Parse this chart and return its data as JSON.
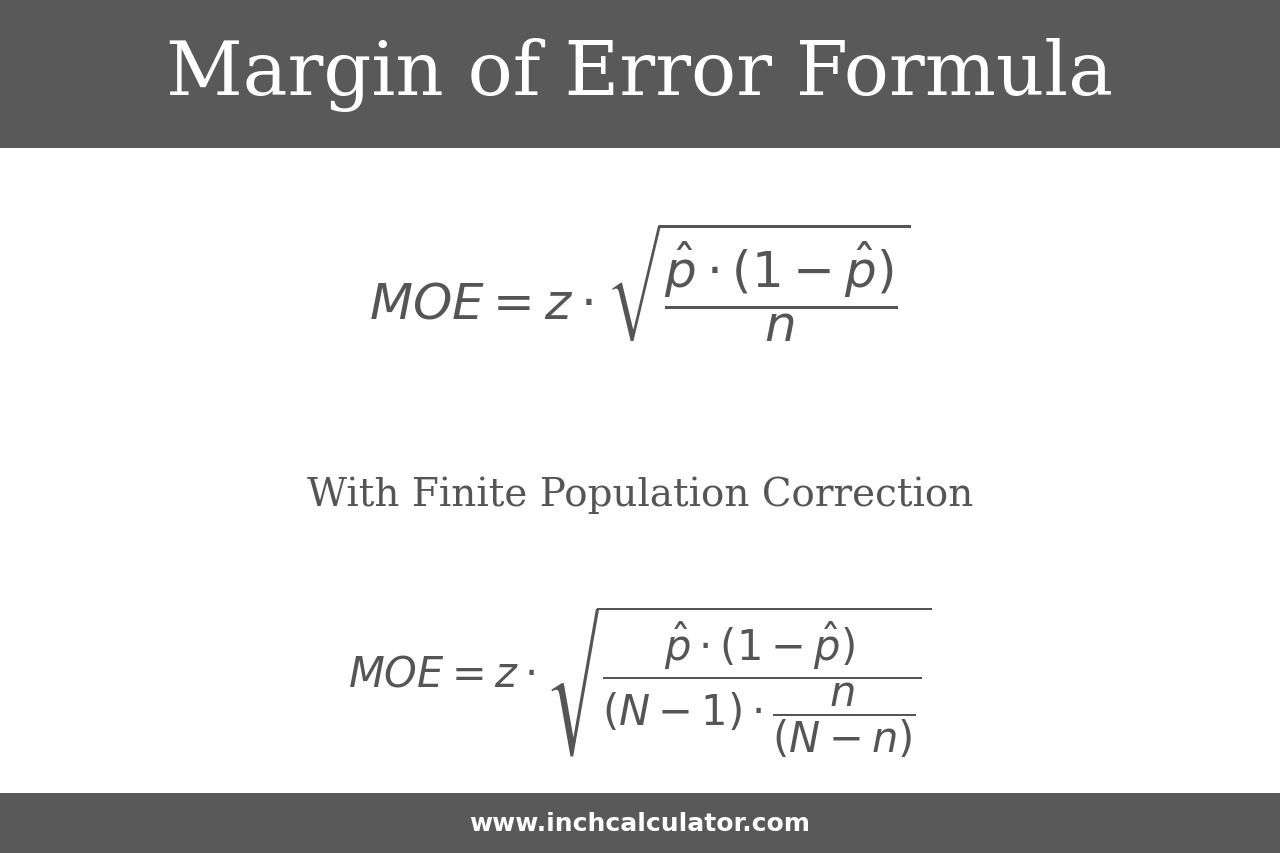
{
  "title": "Margin of Error Formula",
  "title_bg_color": "#595959",
  "title_text_color": "#ffffff",
  "body_bg_color": "#ffffff",
  "footer_bg_color": "#595959",
  "footer_text": "www.inchcalculator.com",
  "footer_text_color": "#ffffff",
  "formula1": "MOE = z \\cdot \\sqrt{\\dfrac{\\hat{p} \\cdot (1 - \\hat{p})}{n}}",
  "subtitle": "With Finite Population Correction",
  "formula2": "MOE = z \\cdot \\sqrt{\\dfrac{\\hat{p} \\cdot (1 - \\hat{p})}{(N-1) \\cdot \\dfrac{n}{(N-n)}}}",
  "formula_color": "#555555",
  "subtitle_color": "#555555",
  "title_fontsize": 54,
  "formula1_fontsize": 36,
  "subtitle_fontsize": 28,
  "formula2_fontsize": 30,
  "footer_fontsize": 18,
  "title_bar_height": 0.175,
  "footer_bar_height": 0.07
}
